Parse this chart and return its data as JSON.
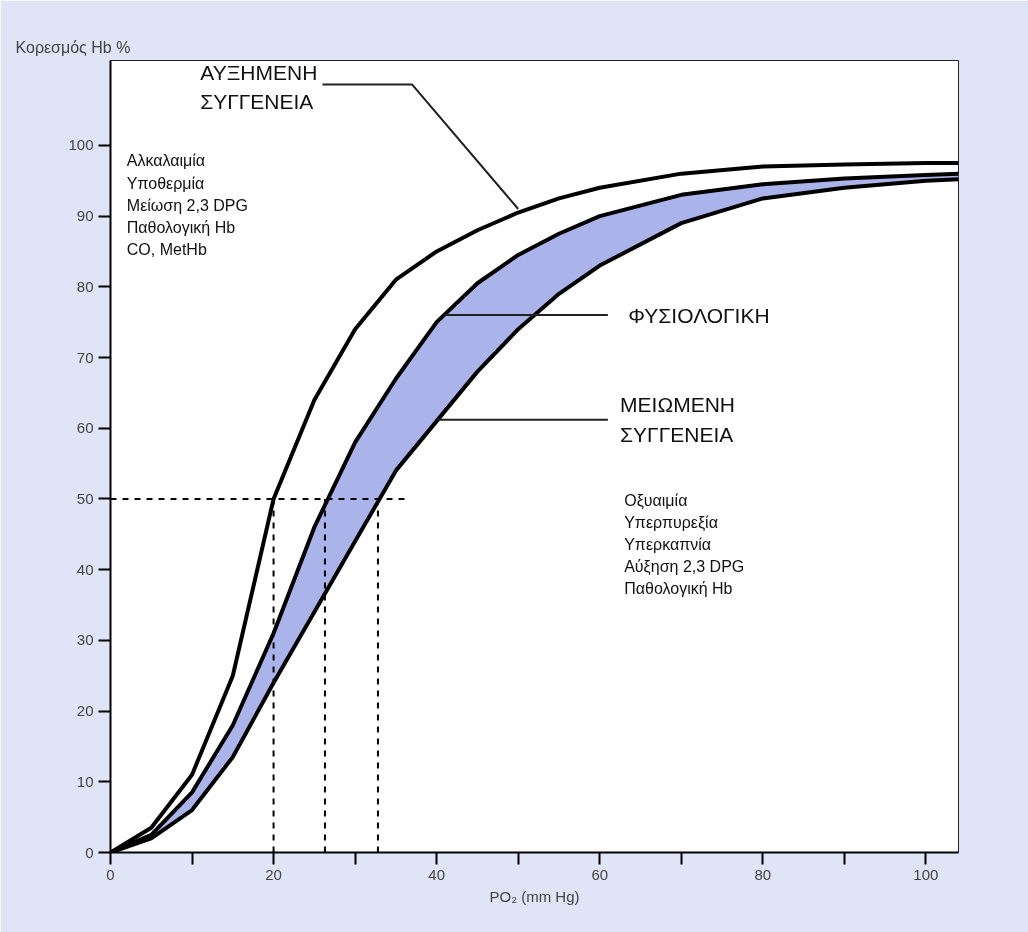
{
  "chart_data": {
    "type": "line",
    "ylabel": "Κορεσμός Hb %",
    "xlabel": "PO₂ (mm Hg)",
    "x": [
      0,
      5,
      10,
      15,
      20,
      25,
      30,
      35,
      40,
      45,
      50,
      55,
      60,
      70,
      80,
      90,
      100,
      104
    ],
    "series": [
      {
        "color": "#000000",
        "values": [
          0,
          3.5,
          11,
          25,
          50,
          64,
          74,
          81,
          85,
          88,
          90.5,
          92.5,
          94,
          96,
          97,
          97.3,
          97.5,
          97.5
        ]
      },
      {
        "color": "#000000",
        "values": [
          0,
          2.5,
          8.5,
          18,
          31,
          46,
          58,
          67,
          75,
          80.5,
          84.5,
          87.5,
          90,
          93,
          94.5,
          95.3,
          95.8,
          96
        ],
        "lower": [
          0,
          2,
          6,
          13.5,
          24,
          34,
          44,
          54,
          61,
          68,
          74,
          79,
          83,
          89,
          92.5,
          94,
          95,
          95.2
        ],
        "upper": [
          0,
          2.5,
          8.5,
          18,
          31,
          46,
          58,
          67,
          75,
          80.5,
          84.5,
          87.5,
          90,
          93,
          94.5,
          95.3,
          95.8,
          96
        ]
      },
      {
        "color": "#000000",
        "values": [
          0,
          2,
          6,
          13.5,
          24,
          34,
          44,
          54,
          61,
          68,
          74,
          79,
          83,
          89,
          92.5,
          94,
          95,
          95.2
        ]
      }
    ],
    "xlim": [
      0,
      104
    ],
    "ylim": [
      0,
      112
    ],
    "xticks": [
      0,
      {
        "value": 10,
        "label": null
      },
      20,
      {
        "value": 30,
        "label": null
      },
      40,
      {
        "value": 50,
        "label": null
      },
      60,
      {
        "value": 70,
        "label": null
      },
      80,
      {
        "value": 90,
        "label": null
      },
      100
    ],
    "yticks": [
      0,
      10,
      20,
      30,
      40,
      50,
      60,
      70,
      80,
      90,
      100
    ],
    "ref_lines": [
      {
        "axis": "y",
        "value": 50,
        "line_style": "dashed"
      },
      {
        "axis": "x",
        "value": 20,
        "line_style": "dashed"
      },
      {
        "axis": "x",
        "value": 26.3,
        "line_style": "dashed"
      },
      {
        "axis": "x",
        "value": 32.8,
        "line_style": "dashed"
      }
    ],
    "annotations": [
      {
        "text": "ΑΥΞΗΜΕΝΗ\nΣΥΓΓΕΝΕΙΑ",
        "x": 50,
        "y": 91
      },
      "Αλκαλαιμία\nΥποθερμία\nΜείωση 2,3 DPG\nΠαθολογική Hb\nCO, MetHb",
      {
        "text": "ΦΥΣΙΟΛΟΓΙΚΗ",
        "x": 41,
        "y": 76
      },
      {
        "text": "ΜΕΙΩΜΕΝΗ\nΣΥΓΓΕΝΕΙΑ",
        "x": 40,
        "y": 61.2
      },
      "Οξυαιμία\nΥπερπυρεξία\nΥπερκαπνία\nΑύξηση 2,3 DPG\nΠαθολογική Hb"
    ],
    "line_style": "solid"
  }
}
